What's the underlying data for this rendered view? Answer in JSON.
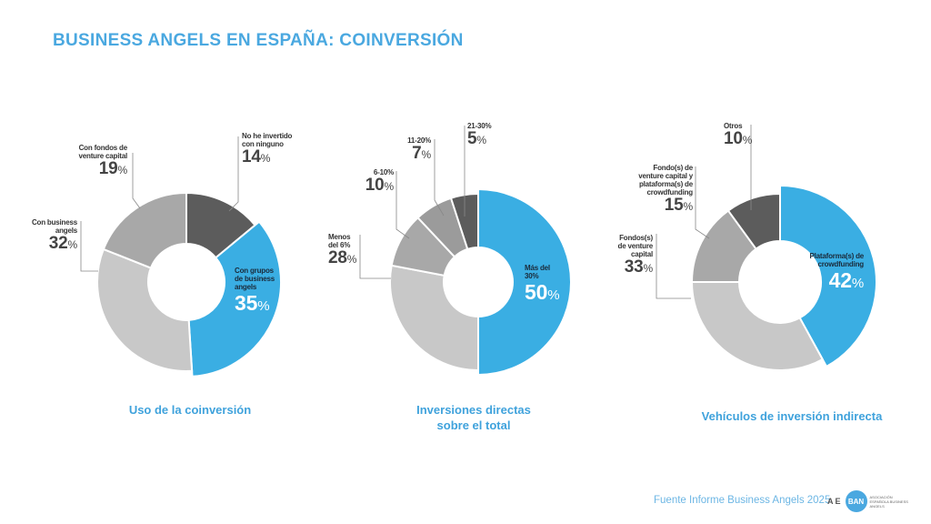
{
  "title": "BUSINESS ANGELS EN ESPAÑA: COINVERSIÓN",
  "colors": {
    "accent": "#3aaee3",
    "light_gray": "#c8c8c8",
    "mid_gray": "#a8a8a8",
    "gray": "#9b9b9b",
    "dark_gray": "#5c5c5c",
    "title": "#4aa8e0"
  },
  "chart_data": [
    {
      "type": "pie",
      "variant": "donut",
      "caption": "Uso de la coinversión",
      "slices": [
        {
          "label_lines": [
            "No he invertido",
            "con ninguno"
          ],
          "value": 14,
          "value_text": "14",
          "color": "#5c5c5c"
        },
        {
          "label_lines": [
            "Con grupos",
            "de business",
            "angels"
          ],
          "value": 35,
          "value_text": "35",
          "color": "#3aaee3",
          "highlight": true
        },
        {
          "label_lines": [
            "Con business",
            "angels"
          ],
          "value": 32,
          "value_text": "32",
          "color": "#c8c8c8"
        },
        {
          "label_lines": [
            "Con fondos de",
            "venture capital"
          ],
          "value": 19,
          "value_text": "19",
          "color": "#a8a8a8"
        }
      ]
    },
    {
      "type": "pie",
      "variant": "donut",
      "caption": [
        "Inversiones directas",
        "sobre el total"
      ],
      "slices": [
        {
          "label_lines": [
            "Más del",
            "30%"
          ],
          "value": 50,
          "value_text": "50",
          "color": "#3aaee3",
          "highlight": true
        },
        {
          "label_lines": [
            "Menos",
            "del 6%"
          ],
          "value": 28,
          "value_text": "28",
          "color": "#c8c8c8"
        },
        {
          "label_lines": [
            "6-10%"
          ],
          "value": 10,
          "value_text": "10",
          "color": "#a8a8a8"
        },
        {
          "label_lines": [
            "11-20%"
          ],
          "value": 7,
          "value_text": "7",
          "color": "#9b9b9b"
        },
        {
          "label_lines": [
            "21-30%"
          ],
          "value": 5,
          "value_text": "5",
          "color": "#5c5c5c"
        }
      ]
    },
    {
      "type": "pie",
      "variant": "donut",
      "caption": "Vehículos de inversión indirecta",
      "slices": [
        {
          "label_lines": [
            "Plataforma(s) de",
            "crowdfunding"
          ],
          "value": 42,
          "value_text": "42",
          "color": "#3aaee3",
          "highlight": true
        },
        {
          "label_lines": [
            "Fondos(s)",
            "de venture",
            "capital"
          ],
          "value": 33,
          "value_text": "33",
          "color": "#c8c8c8"
        },
        {
          "label_lines": [
            "Fondo(s) de",
            "venture capital y",
            "plataforma(s) de",
            "crowdfunding"
          ],
          "value": 15,
          "value_text": "15",
          "color": "#a8a8a8"
        },
        {
          "label_lines": [
            "Otros"
          ],
          "value": 10,
          "value_text": "10",
          "color": "#5c5c5c"
        }
      ]
    }
  ],
  "percent_sign": "%",
  "footer": {
    "source": "Fuente Informe Business Angels 2025",
    "logo_ae": "AE",
    "logo_ban": "BAN",
    "logo_org": "ASOCIACIÓN ESPAÑOLA BUSINESS ANGELS"
  }
}
